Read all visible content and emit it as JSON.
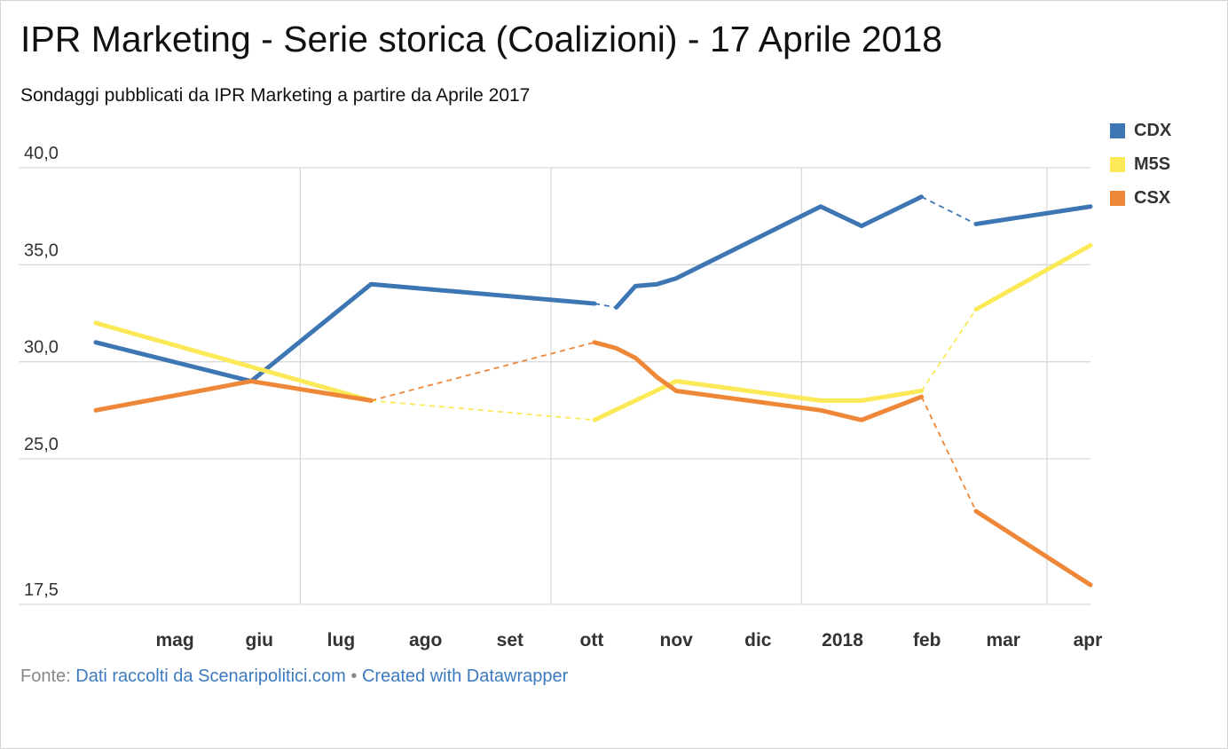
{
  "header": {
    "title": "IPR Marketing - Serie storica (Coalizioni) - 17 Aprile 2018",
    "subtitle": "Sondaggi pubblicati da IPR Marketing a partire da Aprile 2017"
  },
  "footer": {
    "source_label": "Fonte:",
    "source_link": "Dati raccolti da Scenaripolitici.com",
    "separator": "•",
    "credit_link": "Created with Datawrapper"
  },
  "colors": {
    "CDX": "#3d76b3",
    "M5S": "#fbe957",
    "CSX": "#ee8737",
    "grid": "#d9d9d9"
  },
  "chart_data": {
    "type": "line",
    "title": "IPR Marketing - Serie storica (Coalizioni) - 17 Aprile 2018",
    "subtitle": "Sondaggi pubblicati da IPR Marketing a partire da Aprile 2017",
    "xlabel": "",
    "ylabel": "",
    "ylim": [
      17.5,
      40.0
    ],
    "yticks": [
      {
        "value": 40.0,
        "label": "40,0"
      },
      {
        "value": 35.0,
        "label": "35,0"
      },
      {
        "value": 30.0,
        "label": "30,0"
      },
      {
        "value": 25.0,
        "label": "25,0"
      },
      {
        "value": 17.5,
        "label": "17,5"
      }
    ],
    "xlim": [
      "2017-04-17",
      "2018-04-17"
    ],
    "xticks": [
      {
        "label": "mag",
        "date": "2017-05-01",
        "grid": false
      },
      {
        "label": "giu",
        "date": "2017-06-01",
        "grid": false
      },
      {
        "label": "lug",
        "date": "2017-07-01",
        "grid": true
      },
      {
        "label": "ago",
        "date": "2017-08-01",
        "grid": false
      },
      {
        "label": "set",
        "date": "2017-09-01",
        "grid": false
      },
      {
        "label": "ott",
        "date": "2017-10-01",
        "grid": true
      },
      {
        "label": "nov",
        "date": "2017-11-01",
        "grid": false
      },
      {
        "label": "dic",
        "date": "2017-12-01",
        "grid": false
      },
      {
        "label": "2018",
        "date": "2018-01-01",
        "grid": true
      },
      {
        "label": "feb",
        "date": "2018-02-01",
        "grid": false
      },
      {
        "label": "mar",
        "date": "2018-03-01",
        "grid": false
      },
      {
        "label": "apr",
        "date": "2018-04-01",
        "grid": true
      }
    ],
    "grid": true,
    "legend_position": "top-right",
    "series": [
      {
        "name": "CDX",
        "points": [
          {
            "x": "2017-04-17",
            "y": 31.0
          },
          {
            "x": "2017-06-13",
            "y": 29.0
          },
          {
            "x": "2017-07-27",
            "y": 34.0
          },
          {
            "x": "2017-10-17",
            "y": 33.0
          },
          {
            "x": "2017-10-25",
            "y": 32.8
          },
          {
            "x": "2017-11-01",
            "y": 33.9
          },
          {
            "x": "2017-11-09",
            "y": 34.0
          },
          {
            "x": "2017-11-16",
            "y": 34.3
          },
          {
            "x": "2018-01-08",
            "y": 38.0
          },
          {
            "x": "2018-01-23",
            "y": 37.0
          },
          {
            "x": "2018-02-14",
            "y": 38.5
          },
          {
            "x": "2018-03-06",
            "y": 37.1
          },
          {
            "x": "2018-04-17",
            "y": 38.0
          }
        ],
        "dashed_segments": [
          3,
          10
        ]
      },
      {
        "name": "M5S",
        "points": [
          {
            "x": "2017-04-17",
            "y": 32.0
          },
          {
            "x": "2017-07-27",
            "y": 28.0
          },
          {
            "x": "2017-10-17",
            "y": 27.0
          },
          {
            "x": "2017-11-16",
            "y": 29.0
          },
          {
            "x": "2018-01-08",
            "y": 28.0
          },
          {
            "x": "2018-01-23",
            "y": 28.0
          },
          {
            "x": "2018-02-14",
            "y": 28.5
          },
          {
            "x": "2018-03-06",
            "y": 32.7
          },
          {
            "x": "2018-04-17",
            "y": 36.0
          }
        ],
        "dashed_segments": [
          1,
          6
        ]
      },
      {
        "name": "CSX",
        "points": [
          {
            "x": "2017-04-17",
            "y": 27.5
          },
          {
            "x": "2017-06-13",
            "y": 29.0
          },
          {
            "x": "2017-07-27",
            "y": 28.0
          },
          {
            "x": "2017-10-17",
            "y": 31.0
          },
          {
            "x": "2017-10-25",
            "y": 30.7
          },
          {
            "x": "2017-11-01",
            "y": 30.2
          },
          {
            "x": "2017-11-09",
            "y": 29.2
          },
          {
            "x": "2017-11-16",
            "y": 28.5
          },
          {
            "x": "2018-01-08",
            "y": 27.5
          },
          {
            "x": "2018-01-23",
            "y": 27.0
          },
          {
            "x": "2018-02-14",
            "y": 28.2
          },
          {
            "x": "2018-03-06",
            "y": 22.3
          },
          {
            "x": "2018-04-17",
            "y": 18.5
          }
        ],
        "dashed_segments": [
          2,
          10
        ]
      }
    ]
  }
}
